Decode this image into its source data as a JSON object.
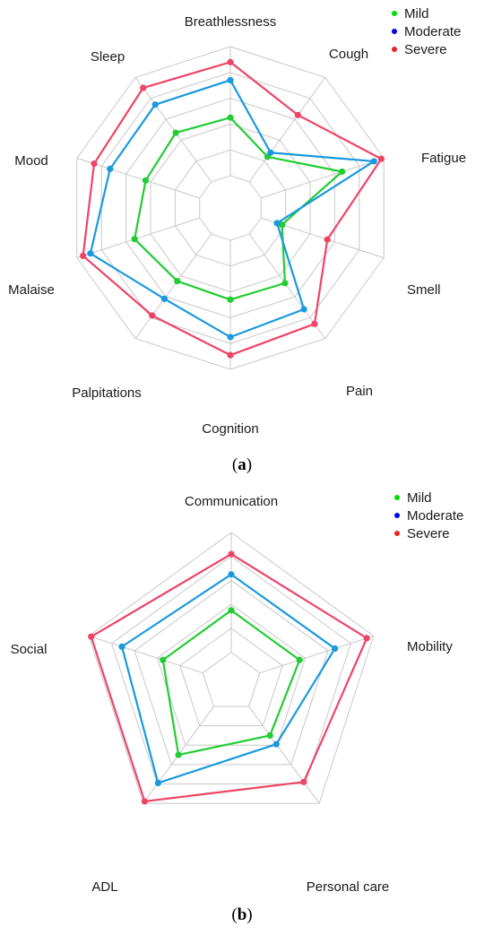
{
  "chart_data": [
    {
      "type": "radar",
      "panel_label": "a",
      "axes": [
        "Breathlessness",
        "Cough",
        "Fatigue",
        "Smell",
        "Pain",
        "Cognition",
        "Palpitations",
        "Malaise",
        "Mood",
        "Sleep"
      ],
      "rlim": [
        0,
        10
      ],
      "grid_levels": [
        2,
        4,
        6,
        8,
        10
      ],
      "series": [
        {
          "name": "Mild",
          "color": "#22cc33",
          "values": [
            4.5,
            2.4,
            6.6,
            1.7,
            4.7,
            4.6,
            4.5,
            5.3,
            4.4,
            4.7
          ]
        },
        {
          "name": "Moderate",
          "color": "#1a99dd",
          "values": [
            7.4,
            2.8,
            9.2,
            1.3,
            7.2,
            7.5,
            6.2,
            8.9,
            7.3,
            7.4
          ]
        },
        {
          "name": "Severe",
          "color": "#ee4466",
          "values": [
            8.8,
            6.4,
            9.8,
            5.4,
            8.6,
            8.9,
            7.8,
            9.5,
            8.6,
            9.0
          ]
        }
      ],
      "legend_markers": {
        "Mild": "#00dd00",
        "Moderate": "#0000ee",
        "Severe": "#ee2222"
      },
      "legend_position": "top-right",
      "grid": true
    },
    {
      "type": "radar",
      "panel_label": "b",
      "axes": [
        "Communication",
        "Mobility",
        "Personal care",
        "ADL",
        "Social"
      ],
      "rlim": [
        0,
        10
      ],
      "grid_levels": [
        2,
        4,
        6,
        8,
        10
      ],
      "series": [
        {
          "name": "Mild",
          "color": "#22cc33",
          "values": [
            3.5,
            3.5,
            3.0,
            5.0,
            3.5
          ]
        },
        {
          "name": "Moderate",
          "color": "#1a99dd",
          "values": [
            6.5,
            6.6,
            3.9,
            7.9,
            7.1
          ]
        },
        {
          "name": "Severe",
          "color": "#ee4466",
          "values": [
            8.2,
            9.4,
            7.8,
            9.8,
            9.8
          ]
        }
      ],
      "legend_markers": {
        "Mild": "#00dd00",
        "Moderate": "#0000ee",
        "Severe": "#ee2222"
      },
      "legend_position": "top-right",
      "grid": true
    }
  ]
}
